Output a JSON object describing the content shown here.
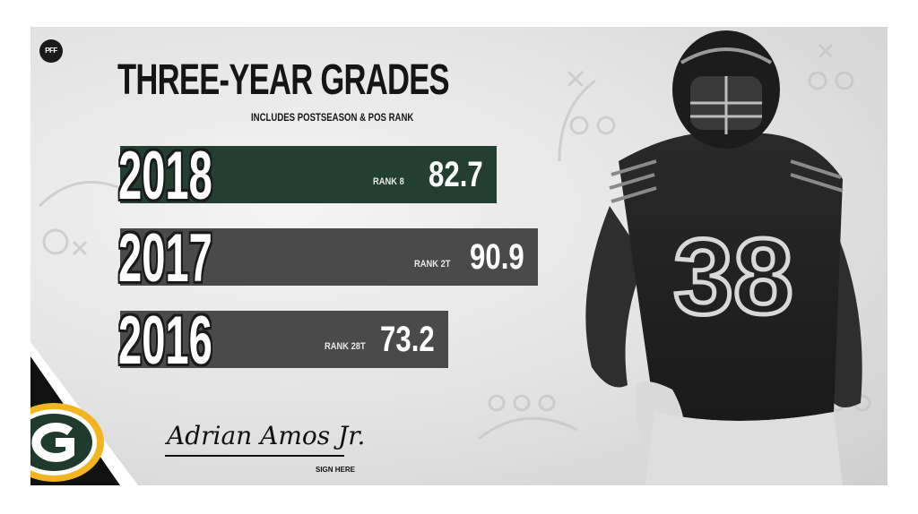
{
  "brand": {
    "logo_text": "PFF"
  },
  "header": {
    "title": "THREE-YEAR GRADES",
    "subtitle": "INCLUDES POSTSEASON & POS RANK"
  },
  "player": {
    "signature": "Adrian Amos Jr.",
    "sign_label": "SIGN HERE",
    "jersey_number": "38"
  },
  "colors": {
    "highlight": "#223f31",
    "bar": "#4a4a4a",
    "team_green": "#1f3b2d",
    "team_gold": "#f2b51f"
  },
  "chart_data": {
    "type": "bar",
    "title": "THREE-YEAR GRADES",
    "subtitle": "INCLUDES POSTSEASON & POS RANK",
    "categories": [
      "2018",
      "2017",
      "2016"
    ],
    "values": [
      82.7,
      90.9,
      73.2
    ],
    "value_labels": [
      "82.7",
      "90.9",
      "73.2"
    ],
    "ranks": [
      "RANK 8",
      "RANK 2T",
      "RANK 28T"
    ],
    "highlight_index": 0,
    "orientation": "horizontal"
  }
}
